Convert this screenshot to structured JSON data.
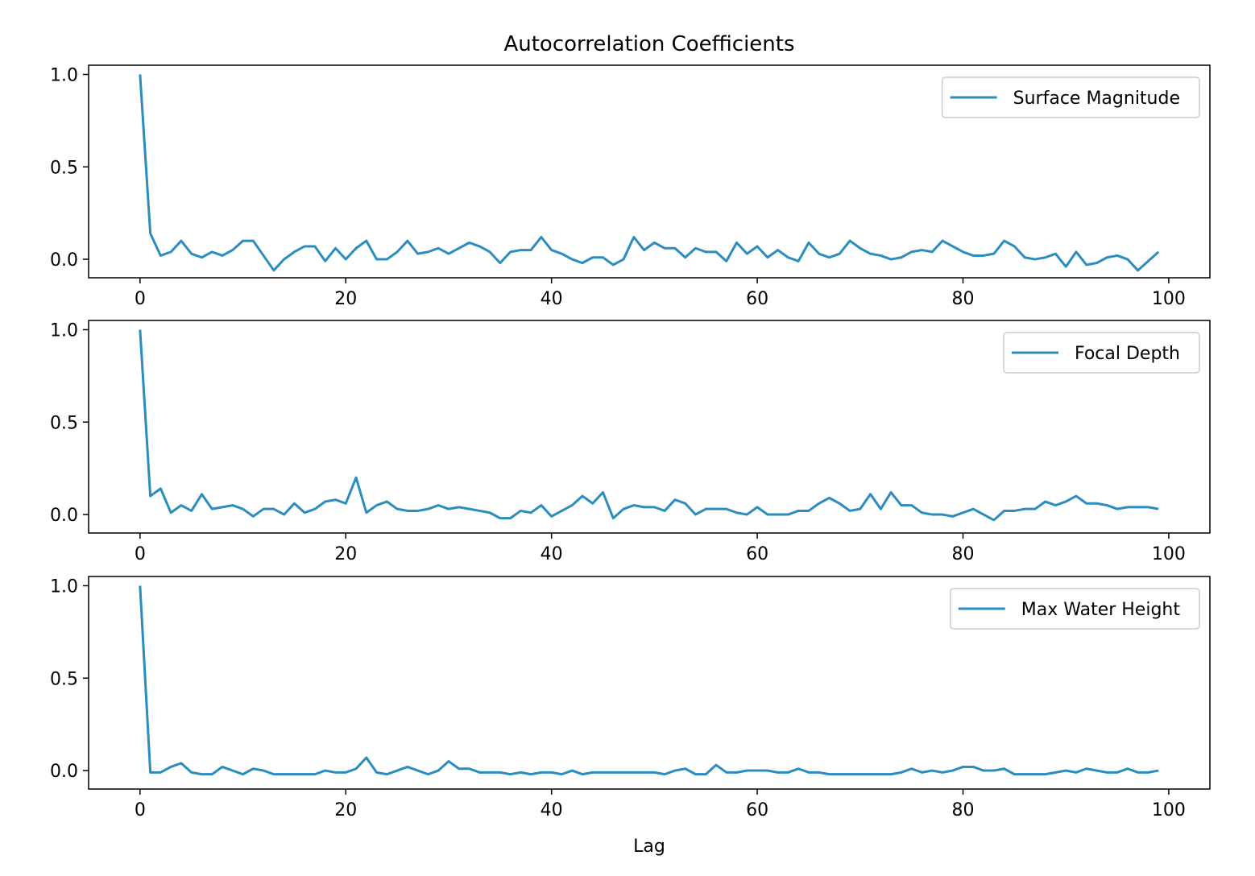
{
  "chart_data": {
    "type": "line",
    "title": "Autocorrelation Coefficients",
    "xlabel": "Lag",
    "xlim": [
      -5,
      104
    ],
    "ylim": [
      -0.1,
      1.05
    ],
    "xticks": [
      0,
      20,
      40,
      60,
      80,
      100
    ],
    "yticks": [
      0.0,
      0.5,
      1.0
    ],
    "xtick_labels": [
      "0",
      "20",
      "40",
      "60",
      "80",
      "100"
    ],
    "ytick_labels": [
      "0.0",
      "0.5",
      "1.0"
    ],
    "legend_position": "top-right",
    "line_color": "#2b8cbe",
    "subplots": [
      {
        "legend": "Surface Magnitude",
        "values": [
          1.0,
          0.14,
          0.02,
          0.04,
          0.1,
          0.03,
          0.01,
          0.04,
          0.02,
          0.05,
          0.1,
          0.1,
          0.02,
          -0.06,
          0.0,
          0.04,
          0.07,
          0.07,
          -0.01,
          0.06,
          0.0,
          0.06,
          0.1,
          0.0,
          0.0,
          0.04,
          0.1,
          0.03,
          0.04,
          0.06,
          0.03,
          0.06,
          0.09,
          0.07,
          0.04,
          -0.02,
          0.04,
          0.05,
          0.05,
          0.12,
          0.05,
          0.03,
          0.0,
          -0.02,
          0.01,
          0.01,
          -0.03,
          0.0,
          0.12,
          0.05,
          0.09,
          0.06,
          0.06,
          0.01,
          0.06,
          0.04,
          0.04,
          -0.01,
          0.09,
          0.03,
          0.07,
          0.01,
          0.05,
          0.01,
          -0.01,
          0.09,
          0.03,
          0.01,
          0.03,
          0.1,
          0.06,
          0.03,
          0.02,
          0.0,
          0.01,
          0.04,
          0.05,
          0.04,
          0.1,
          0.07,
          0.04,
          0.02,
          0.02,
          0.03,
          0.1,
          0.07,
          0.01,
          0.0,
          0.01,
          0.03,
          -0.04,
          0.04,
          -0.03,
          -0.02,
          0.01,
          0.02,
          0.0,
          -0.06,
          -0.01,
          0.04
        ]
      },
      {
        "legend": "Focal Depth",
        "values": [
          1.0,
          0.1,
          0.14,
          0.01,
          0.05,
          0.02,
          0.11,
          0.03,
          0.04,
          0.05,
          0.03,
          -0.01,
          0.03,
          0.03,
          0.0,
          0.06,
          0.01,
          0.03,
          0.07,
          0.08,
          0.06,
          0.2,
          0.01,
          0.05,
          0.07,
          0.03,
          0.02,
          0.02,
          0.03,
          0.05,
          0.03,
          0.04,
          0.03,
          0.02,
          0.01,
          -0.02,
          -0.02,
          0.02,
          0.01,
          0.05,
          -0.01,
          0.02,
          0.05,
          0.1,
          0.06,
          0.12,
          -0.02,
          0.03,
          0.05,
          0.04,
          0.04,
          0.02,
          0.08,
          0.06,
          0.0,
          0.03,
          0.03,
          0.03,
          0.01,
          0.0,
          0.04,
          0.0,
          0.0,
          0.0,
          0.02,
          0.02,
          0.06,
          0.09,
          0.06,
          0.02,
          0.03,
          0.11,
          0.03,
          0.12,
          0.05,
          0.05,
          0.01,
          0.0,
          0.0,
          -0.01,
          0.01,
          0.03,
          0.0,
          -0.03,
          0.02,
          0.02,
          0.03,
          0.03,
          0.07,
          0.05,
          0.07,
          0.1,
          0.06,
          0.06,
          0.05,
          0.03,
          0.04,
          0.04,
          0.04,
          0.03
        ]
      },
      {
        "legend": "Max Water Height",
        "values": [
          1.0,
          -0.01,
          -0.01,
          0.02,
          0.04,
          -0.01,
          -0.02,
          -0.02,
          0.02,
          0.0,
          -0.02,
          0.01,
          0.0,
          -0.02,
          -0.02,
          -0.02,
          -0.02,
          -0.02,
          0.0,
          -0.01,
          -0.01,
          0.01,
          0.07,
          -0.01,
          -0.02,
          0.0,
          0.02,
          0.0,
          -0.02,
          0.0,
          0.05,
          0.01,
          0.01,
          -0.01,
          -0.01,
          -0.01,
          -0.02,
          -0.01,
          -0.02,
          -0.01,
          -0.01,
          -0.02,
          0.0,
          -0.02,
          -0.01,
          -0.01,
          -0.01,
          -0.01,
          -0.01,
          -0.01,
          -0.01,
          -0.02,
          0.0,
          0.01,
          -0.02,
          -0.02,
          0.03,
          -0.01,
          -0.01,
          0.0,
          0.0,
          0.0,
          -0.01,
          -0.01,
          0.01,
          -0.01,
          -0.01,
          -0.02,
          -0.02,
          -0.02,
          -0.02,
          -0.02,
          -0.02,
          -0.02,
          -0.01,
          0.01,
          -0.01,
          0.0,
          -0.01,
          0.0,
          0.02,
          0.02,
          0.0,
          0.0,
          0.01,
          -0.02,
          -0.02,
          -0.02,
          -0.02,
          -0.01,
          0.0,
          -0.01,
          0.01,
          0.0,
          -0.01,
          -0.01,
          0.01,
          -0.01,
          -0.01,
          0.0
        ]
      }
    ]
  }
}
